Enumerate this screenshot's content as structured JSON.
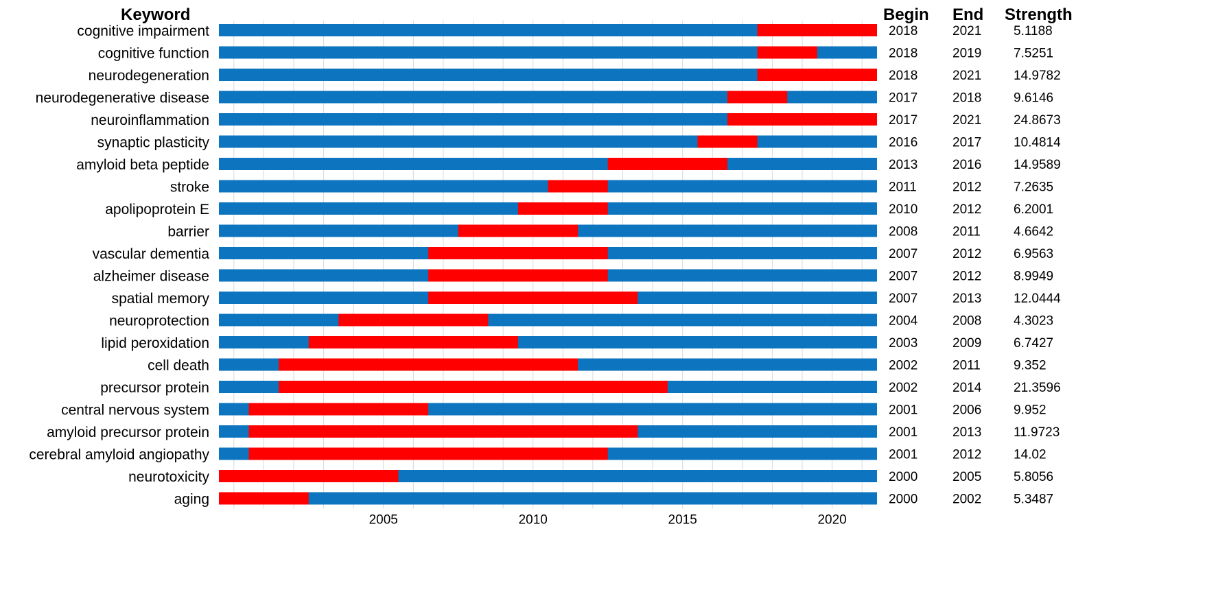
{
  "chart_data": {
    "type": "bar",
    "headers": {
      "keyword": "Keyword",
      "begin": "Begin",
      "end": "End",
      "strength": "Strength"
    },
    "xlim": [
      1999.5,
      2021.5
    ],
    "xticks": [
      "2005",
      "2010",
      "2015",
      "2020"
    ],
    "colors": {
      "base": "#0d74bf",
      "burst": "#ff0000",
      "grid": "#d9d9d9"
    },
    "rows": [
      {
        "keyword": "cognitive impairment",
        "begin": "2018",
        "end": "2021",
        "strength": "5.1188"
      },
      {
        "keyword": "cognitive function",
        "begin": "2018",
        "end": "2019",
        "strength": "7.5251"
      },
      {
        "keyword": "neurodegeneration",
        "begin": "2018",
        "end": "2021",
        "strength": "14.9782"
      },
      {
        "keyword": "neurodegenerative disease",
        "begin": "2017",
        "end": "2018",
        "strength": "9.6146"
      },
      {
        "keyword": "neuroinflammation",
        "begin": "2017",
        "end": "2021",
        "strength": "24.8673"
      },
      {
        "keyword": "synaptic plasticity",
        "begin": "2016",
        "end": "2017",
        "strength": "10.4814"
      },
      {
        "keyword": "amyloid beta peptide",
        "begin": "2013",
        "end": "2016",
        "strength": "14.9589"
      },
      {
        "keyword": "stroke",
        "begin": "2011",
        "end": "2012",
        "strength": "7.2635"
      },
      {
        "keyword": "apolipoprotein E",
        "begin": "2010",
        "end": "2012",
        "strength": "6.2001"
      },
      {
        "keyword": "barrier",
        "begin": "2008",
        "end": "2011",
        "strength": "4.6642"
      },
      {
        "keyword": "vascular dementia",
        "begin": "2007",
        "end": "2012",
        "strength": "6.9563"
      },
      {
        "keyword": "alzheimer disease",
        "begin": "2007",
        "end": "2012",
        "strength": "8.9949"
      },
      {
        "keyword": "spatial memory",
        "begin": "2007",
        "end": "2013",
        "strength": "12.0444"
      },
      {
        "keyword": "neuroprotection",
        "begin": "2004",
        "end": "2008",
        "strength": "4.3023"
      },
      {
        "keyword": "lipid peroxidation",
        "begin": "2003",
        "end": "2009",
        "strength": "6.7427"
      },
      {
        "keyword": "cell death",
        "begin": "2002",
        "end": "2011",
        "strength": "9.352"
      },
      {
        "keyword": "precursor protein",
        "begin": "2002",
        "end": "2014",
        "strength": "21.3596"
      },
      {
        "keyword": "central nervous system",
        "begin": "2001",
        "end": "2006",
        "strength": "9.952"
      },
      {
        "keyword": "amyloid precursor protein",
        "begin": "2001",
        "end": "2013",
        "strength": "11.9723"
      },
      {
        "keyword": "cerebral amyloid angiopathy",
        "begin": "2001",
        "end": "2012",
        "strength": "14.02"
      },
      {
        "keyword": "neurotoxicity",
        "begin": "2000",
        "end": "2005",
        "strength": "5.8056"
      },
      {
        "keyword": "aging",
        "begin": "2000",
        "end": "2002",
        "strength": "5.3487"
      }
    ]
  }
}
